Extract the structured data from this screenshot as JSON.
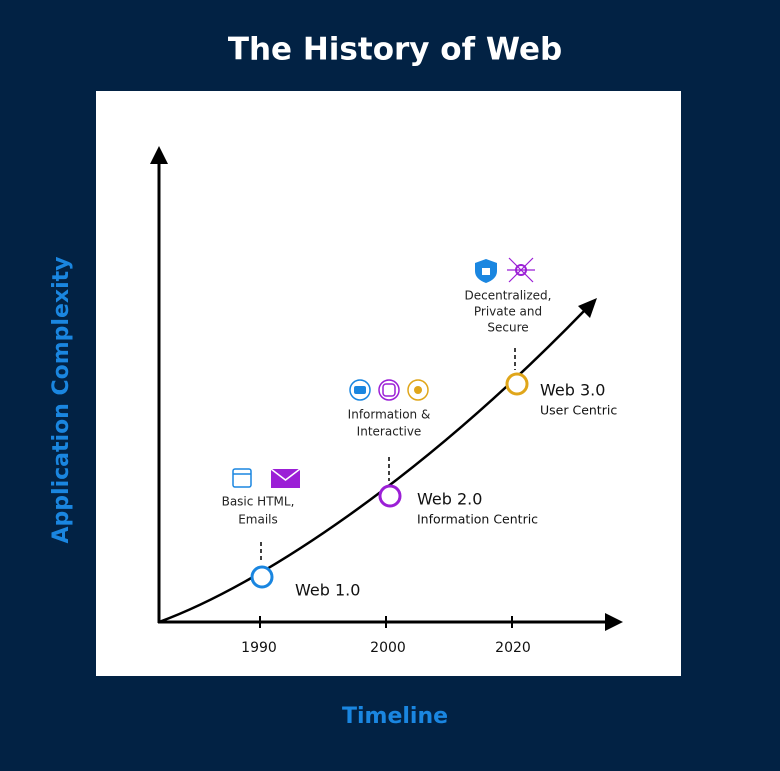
{
  "header": {
    "title": "The History of Web"
  },
  "axes": {
    "y_label": "Application Complexity",
    "x_label": "Timeline",
    "ticks": [
      "1990",
      "2000",
      "2020"
    ]
  },
  "milestones": [
    {
      "name": "Web 1.0",
      "description": [
        "Basic HTML,",
        "Emails"
      ]
    },
    {
      "name": "Web 2.0",
      "subtitle": "Information Centric",
      "description": [
        "Information &",
        "Interactive"
      ]
    },
    {
      "name": "Web 3.0",
      "subtitle": "User Centric",
      "description": [
        "Decentralized,",
        "Private and",
        "Secure"
      ]
    }
  ]
}
